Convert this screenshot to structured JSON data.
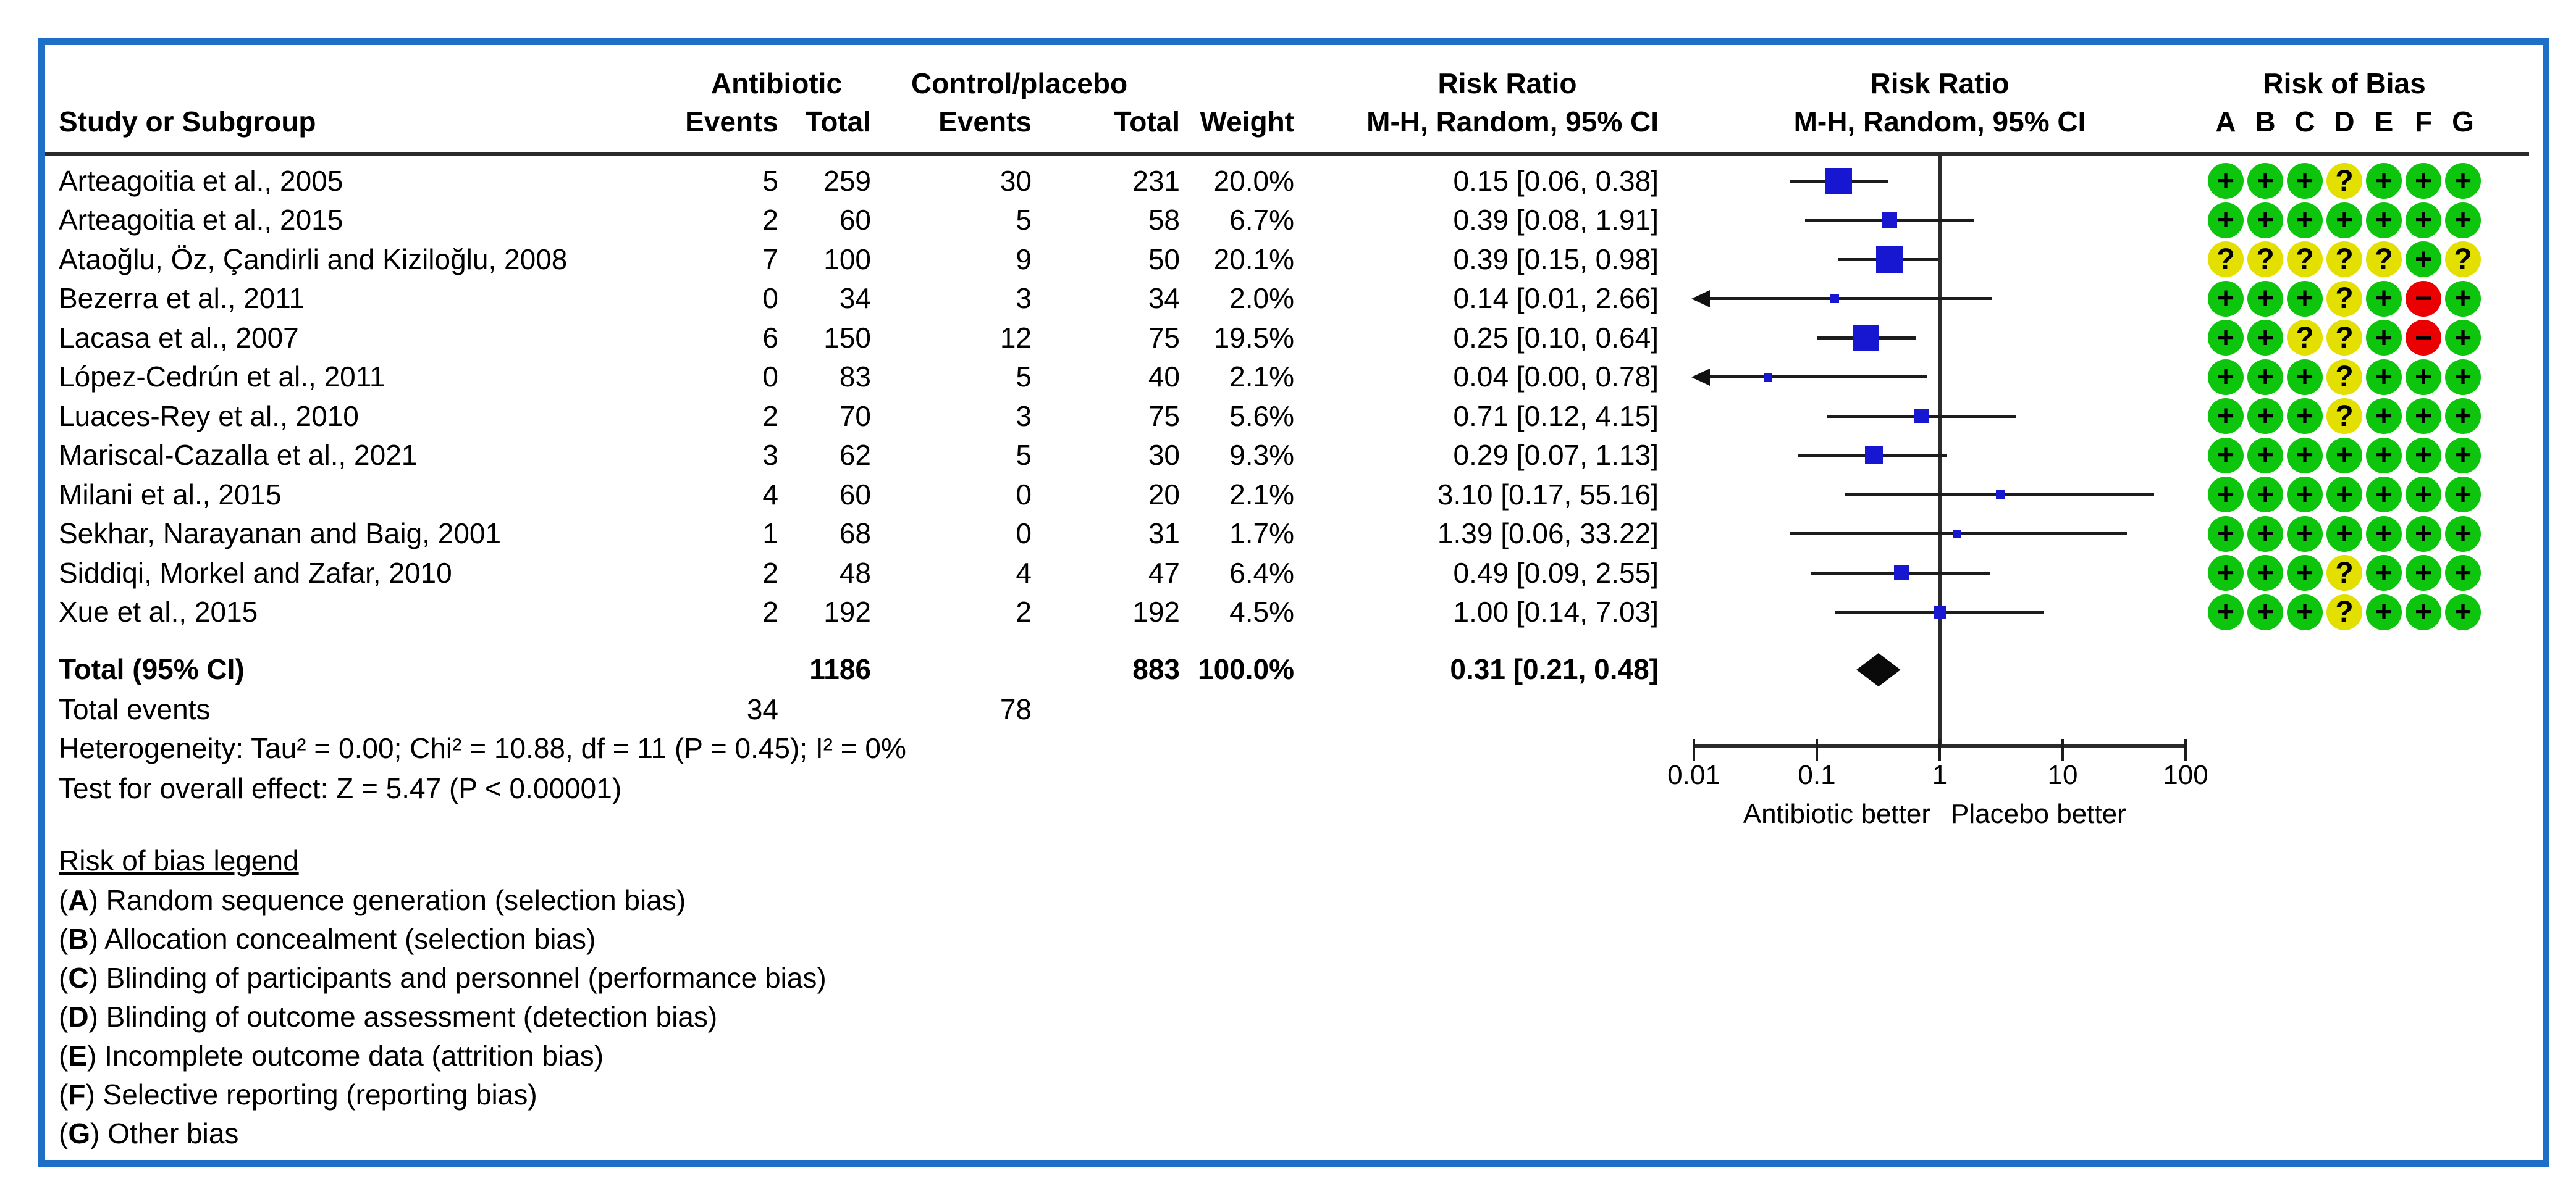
{
  "colors": {
    "frame_blue": "#1e6fc8",
    "square_blue": "#1717d1",
    "rob_green": "#0dc50d",
    "rob_yellow": "#e3df00",
    "rob_red": "#ea0000",
    "line_black": "#1c1c1c"
  },
  "header": {
    "study": "Study or Subgroup",
    "group_antibiotic": "Antibiotic",
    "group_control": "Control/placebo",
    "events": "Events",
    "total": "Total",
    "weight": "Weight",
    "risk_ratio": "Risk Ratio",
    "method": "M-H, Random, 95% CI",
    "risk_of_bias": "Risk of Bias",
    "rob_letters": [
      "A",
      "B",
      "C",
      "D",
      "E",
      "F",
      "G"
    ]
  },
  "chart_data": {
    "type": "forest-plot",
    "effect_measure": "Risk Ratio, M-H, Random, 95% CI",
    "x_axis": {
      "scale": "log",
      "tick_labels": [
        "0.01",
        "0.1",
        "1",
        "10",
        "100"
      ],
      "tick_values": [
        0.01,
        0.1,
        1,
        10,
        100
      ],
      "left_label": "Antibiotic better",
      "right_label": "Placebo better"
    },
    "studies": [
      {
        "name": "Arteagoitia et al., 2005",
        "ab_events": "5",
        "ab_total": "259",
        "c_events": "30",
        "c_total": "231",
        "weight": "20.0%",
        "w": 20.0,
        "rr_text": "0.15 [0.06, 0.38]",
        "rr": 0.15,
        "lo": 0.06,
        "hi": 0.38,
        "rob": [
          "+",
          "+",
          "+",
          "?",
          "+",
          "+",
          "+"
        ]
      },
      {
        "name": "Arteagoitia et al., 2015",
        "ab_events": "2",
        "ab_total": "60",
        "c_events": "5",
        "c_total": "58",
        "weight": "6.7%",
        "w": 6.7,
        "rr_text": "0.39 [0.08, 1.91]",
        "rr": 0.39,
        "lo": 0.08,
        "hi": 1.91,
        "rob": [
          "+",
          "+",
          "+",
          "+",
          "+",
          "+",
          "+"
        ]
      },
      {
        "name": "Ataoğlu, Öz, Çandirli and Kiziloğlu, 2008",
        "ab_events": "7",
        "ab_total": "100",
        "c_events": "9",
        "c_total": "50",
        "weight": "20.1%",
        "w": 20.1,
        "rr_text": "0.39 [0.15, 0.98]",
        "rr": 0.39,
        "lo": 0.15,
        "hi": 0.98,
        "rob": [
          "?",
          "?",
          "?",
          "?",
          "?",
          "+",
          "?"
        ]
      },
      {
        "name": "Bezerra et al., 2011",
        "ab_events": "0",
        "ab_total": "34",
        "c_events": "3",
        "c_total": "34",
        "weight": "2.0%",
        "w": 2.0,
        "rr_text": "0.14 [0.01, 2.66]",
        "rr": 0.14,
        "lo": 0.01,
        "hi": 2.66,
        "rob": [
          "+",
          "+",
          "+",
          "?",
          "+",
          "-",
          "+"
        ]
      },
      {
        "name": "Lacasa et al., 2007",
        "ab_events": "6",
        "ab_total": "150",
        "c_events": "12",
        "c_total": "75",
        "weight": "19.5%",
        "w": 19.5,
        "rr_text": "0.25 [0.10, 0.64]",
        "rr": 0.25,
        "lo": 0.1,
        "hi": 0.64,
        "rob": [
          "+",
          "+",
          "?",
          "?",
          "+",
          "-",
          "+"
        ]
      },
      {
        "name": "López-Cedrún et al., 2011",
        "ab_events": "0",
        "ab_total": "83",
        "c_events": "5",
        "c_total": "40",
        "weight": "2.1%",
        "w": 2.1,
        "rr_text": "0.04 [0.00, 0.78]",
        "rr": 0.04,
        "lo": 0.0,
        "hi": 0.78,
        "rob": [
          "+",
          "+",
          "+",
          "?",
          "+",
          "+",
          "+"
        ]
      },
      {
        "name": "Luaces-Rey et al., 2010",
        "ab_events": "2",
        "ab_total": "70",
        "c_events": "3",
        "c_total": "75",
        "weight": "5.6%",
        "w": 5.6,
        "rr_text": "0.71 [0.12, 4.15]",
        "rr": 0.71,
        "lo": 0.12,
        "hi": 4.15,
        "rob": [
          "+",
          "+",
          "+",
          "?",
          "+",
          "+",
          "+"
        ]
      },
      {
        "name": "Mariscal-Cazalla et al., 2021",
        "ab_events": "3",
        "ab_total": "62",
        "c_events": "5",
        "c_total": "30",
        "weight": "9.3%",
        "w": 9.3,
        "rr_text": "0.29 [0.07, 1.13]",
        "rr": 0.29,
        "lo": 0.07,
        "hi": 1.13,
        "rob": [
          "+",
          "+",
          "+",
          "+",
          "+",
          "+",
          "+"
        ]
      },
      {
        "name": "Milani et al., 2015",
        "ab_events": "4",
        "ab_total": "60",
        "c_events": "0",
        "c_total": "20",
        "weight": "2.1%",
        "w": 2.1,
        "rr_text": "3.10 [0.17, 55.16]",
        "rr": 3.1,
        "lo": 0.17,
        "hi": 55.16,
        "rob": [
          "+",
          "+",
          "+",
          "+",
          "+",
          "+",
          "+"
        ]
      },
      {
        "name": "Sekhar, Narayanan and Baig, 2001",
        "ab_events": "1",
        "ab_total": "68",
        "c_events": "0",
        "c_total": "31",
        "weight": "1.7%",
        "w": 1.7,
        "rr_text": "1.39 [0.06, 33.22]",
        "rr": 1.39,
        "lo": 0.06,
        "hi": 33.22,
        "rob": [
          "+",
          "+",
          "+",
          "+",
          "+",
          "+",
          "+"
        ]
      },
      {
        "name": "Siddiqi, Morkel and Zafar, 2010",
        "ab_events": "2",
        "ab_total": "48",
        "c_events": "4",
        "c_total": "47",
        "weight": "6.4%",
        "w": 6.4,
        "rr_text": "0.49 [0.09, 2.55]",
        "rr": 0.49,
        "lo": 0.09,
        "hi": 2.55,
        "rob": [
          "+",
          "+",
          "+",
          "?",
          "+",
          "+",
          "+"
        ]
      },
      {
        "name": "Xue et al., 2015",
        "ab_events": "2",
        "ab_total": "192",
        "c_events": "2",
        "c_total": "192",
        "weight": "4.5%",
        "w": 4.5,
        "rr_text": "1.00 [0.14, 7.03]",
        "rr": 1.0,
        "lo": 0.14,
        "hi": 7.03,
        "rob": [
          "+",
          "+",
          "+",
          "?",
          "+",
          "+",
          "+"
        ]
      }
    ],
    "total": {
      "label": "Total (95% CI)",
      "ab_total": "1186",
      "c_total": "883",
      "weight": "100.0%",
      "rr_text": "0.31 [0.21, 0.48]",
      "rr": 0.31,
      "lo": 0.21,
      "hi": 0.48
    },
    "total_events": {
      "label": "Total events",
      "ab_events": "34",
      "c_events": "78"
    },
    "heterogeneity": "Heterogeneity: Tau² = 0.00; Chi² = 10.88, df = 11 (P = 0.45); I² = 0%",
    "overall_effect": "Test for overall effect: Z = 5.47 (P < 0.00001)"
  },
  "rob_legend": {
    "title": "Risk of bias legend",
    "items": [
      {
        "letter": "A",
        "text": "Random sequence generation (selection bias)"
      },
      {
        "letter": "B",
        "text": "Allocation concealment (selection bias)"
      },
      {
        "letter": "C",
        "text": "Blinding of participants and personnel (performance bias)"
      },
      {
        "letter": "D",
        "text": "Blinding of outcome assessment (detection bias)"
      },
      {
        "letter": "E",
        "text": "Incomplete outcome data (attrition bias)"
      },
      {
        "letter": "F",
        "text": "Selective reporting (reporting bias)"
      },
      {
        "letter": "G",
        "text": "Other bias"
      }
    ]
  }
}
